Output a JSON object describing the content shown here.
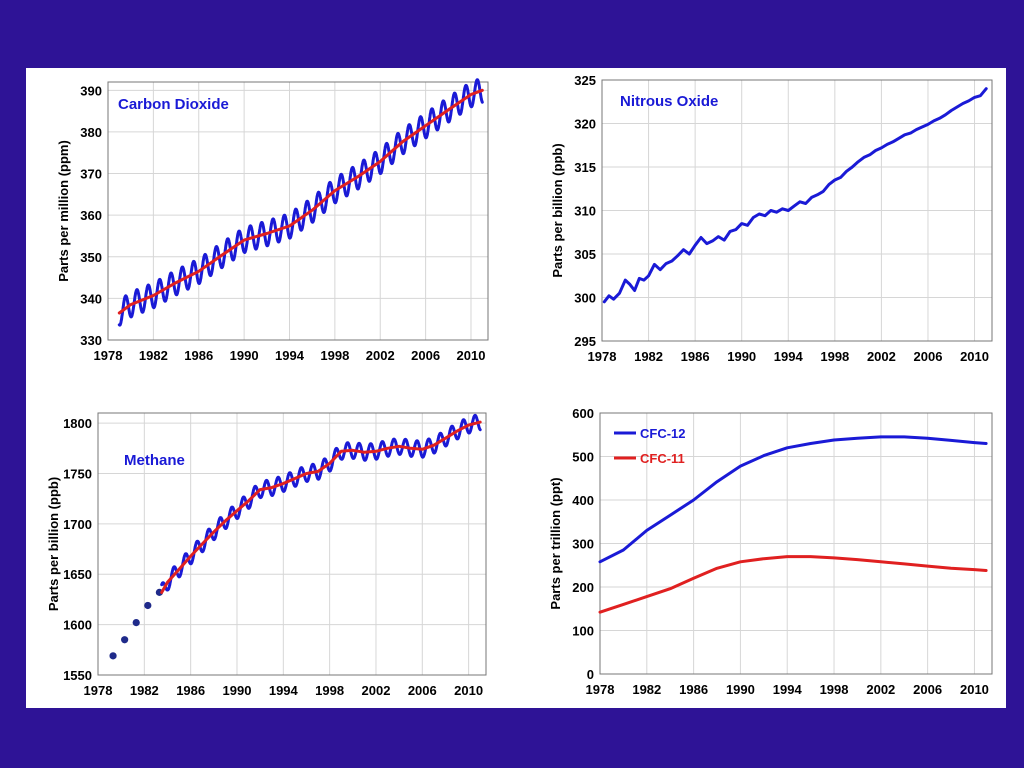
{
  "colors": {
    "background": "#2e1396",
    "blue": "#1a1ad6",
    "red": "#e02020",
    "dots": "#1f2a8a"
  },
  "chart_data": [
    {
      "type": "line",
      "title": "Carbon Dioxide",
      "ylabel": "Parts per million (ppm)",
      "xlim": [
        1978,
        2011.5
      ],
      "ylim": [
        330,
        392
      ],
      "xticks": [
        "1978",
        "1982",
        "1986",
        "1990",
        "1994",
        "1998",
        "2002",
        "2006",
        "2010"
      ],
      "yticks": [
        "330",
        "340",
        "350",
        "360",
        "370",
        "380",
        "390"
      ],
      "series": [
        {
          "color": "blue",
          "style": "seasonal",
          "x": [
            1979,
            1980,
            1982,
            1984,
            1986,
            1988,
            1990,
            1992,
            1994,
            1996,
            1998,
            2000,
            2002,
            2004,
            2006,
            2008,
            2010,
            2011
          ],
          "values": [
            336.5,
            338.5,
            340.7,
            343.8,
            346.5,
            350.3,
            354.0,
            355.6,
            357.4,
            361.2,
            365.9,
            369.2,
            372.9,
            377.7,
            381.5,
            385.3,
            389.0,
            390.0
          ],
          "amplitude": 3
        },
        {
          "color": "red",
          "x": [
            1979,
            1980,
            1982,
            1984,
            1986,
            1988,
            1990,
            1992,
            1994,
            1996,
            1998,
            2000,
            2002,
            2004,
            2006,
            2008,
            2010,
            2011
          ],
          "values": [
            336.5,
            338.5,
            340.7,
            343.8,
            346.5,
            350.3,
            354.0,
            355.6,
            357.4,
            361.2,
            365.9,
            369.2,
            372.9,
            377.7,
            381.5,
            385.3,
            389.0,
            390.0
          ]
        }
      ]
    },
    {
      "type": "line",
      "title": "Nitrous Oxide",
      "ylabel": "Parts per billion (ppb)",
      "xlim": [
        1978,
        2011.5
      ],
      "ylim": [
        295,
        325
      ],
      "xticks": [
        "1978",
        "1982",
        "1986",
        "1990",
        "1994",
        "1998",
        "2002",
        "2006",
        "2010"
      ],
      "yticks": [
        "295",
        "300",
        "305",
        "310",
        "315",
        "320",
        "325"
      ],
      "series": [
        {
          "color": "blue",
          "x": [
            1978.2,
            1978.6,
            1979.0,
            1979.5,
            1980.0,
            1980.4,
            1980.8,
            1981.2,
            1981.6,
            1982.0,
            1982.5,
            1983.0,
            1983.5,
            1984.0,
            1984.5,
            1985.0,
            1985.5,
            1986.0,
            1986.5,
            1987.0,
            1987.5,
            1988.0,
            1988.5,
            1989.0,
            1989.5,
            1990.0,
            1990.5,
            1991.0,
            1991.5,
            1992.0,
            1992.5,
            1993.0,
            1993.5,
            1994.0,
            1994.5,
            1995.0,
            1995.5,
            1996.0,
            1996.5,
            1997.0,
            1997.5,
            1998.0,
            1998.5,
            1999.0,
            1999.5,
            2000.0,
            2000.5,
            2001.0,
            2001.5,
            2002.0,
            2002.5,
            2003.0,
            2003.5,
            2004.0,
            2004.5,
            2005.0,
            2005.5,
            2006.0,
            2006.5,
            2007.0,
            2007.5,
            2008.0,
            2008.5,
            2009.0,
            2009.5,
            2010.0,
            2010.5,
            2011.0
          ],
          "values": [
            299.5,
            300.2,
            299.8,
            300.5,
            302.0,
            301.5,
            300.8,
            302.2,
            302.0,
            302.5,
            303.8,
            303.2,
            303.9,
            304.2,
            304.8,
            305.5,
            305.0,
            306.0,
            306.9,
            306.2,
            306.5,
            307.0,
            306.6,
            307.6,
            307.8,
            308.5,
            308.3,
            309.2,
            309.6,
            309.4,
            310.0,
            309.8,
            310.2,
            310.0,
            310.5,
            311.0,
            310.8,
            311.5,
            311.8,
            312.2,
            313.0,
            313.5,
            313.8,
            314.5,
            315.0,
            315.6,
            316.1,
            316.4,
            316.9,
            317.2,
            317.6,
            317.9,
            318.3,
            318.7,
            318.9,
            319.3,
            319.6,
            319.9,
            320.3,
            320.6,
            321.0,
            321.5,
            321.9,
            322.3,
            322.6,
            323.0,
            323.2,
            324.0
          ]
        }
      ]
    },
    {
      "type": "line",
      "title": "Methane",
      "ylabel": "Parts per billion (ppb)",
      "xlim": [
        1978,
        2011.5
      ],
      "ylim": [
        1550,
        1810
      ],
      "xticks": [
        "1978",
        "1982",
        "1986",
        "1990",
        "1994",
        "1998",
        "2002",
        "2006",
        "2010"
      ],
      "yticks": [
        "1550",
        "1600",
        "1650",
        "1700",
        "1750",
        "1800"
      ],
      "series": [
        {
          "color": "dots",
          "style": "dots",
          "x": [
            1979.3,
            1980.3,
            1981.3,
            1982.3,
            1983.3
          ],
          "values": [
            1569,
            1585,
            1602,
            1619,
            1632
          ]
        },
        {
          "color": "blue",
          "style": "seasonal",
          "x": [
            1983.5,
            1984,
            1985,
            1986,
            1987,
            1988,
            1989,
            1990,
            1991,
            1992,
            1993,
            1994,
            1995,
            1996,
            1997,
            1998,
            1999,
            2000,
            2001,
            2002,
            2003,
            2004,
            2005,
            2006,
            2007,
            2008,
            2009,
            2010,
            2011
          ],
          "values": [
            1632,
            1642,
            1655,
            1668,
            1680,
            1692,
            1703,
            1713,
            1723,
            1734,
            1736,
            1740,
            1745,
            1750,
            1752,
            1760,
            1772,
            1773,
            1771,
            1772,
            1775,
            1777,
            1775,
            1774,
            1778,
            1785,
            1792,
            1798,
            1801
          ],
          "amplitude": 8
        },
        {
          "color": "red",
          "x": [
            1983.5,
            1984,
            1985,
            1986,
            1987,
            1988,
            1989,
            1990,
            1991,
            1992,
            1993,
            1994,
            1995,
            1996,
            1997,
            1998,
            1999,
            2000,
            2001,
            2002,
            2003,
            2004,
            2005,
            2006,
            2007,
            2008,
            2009,
            2010,
            2011
          ],
          "values": [
            1632,
            1642,
            1655,
            1668,
            1680,
            1692,
            1703,
            1713,
            1723,
            1734,
            1736,
            1740,
            1745,
            1750,
            1752,
            1760,
            1772,
            1773,
            1771,
            1772,
            1775,
            1777,
            1775,
            1774,
            1778,
            1785,
            1792,
            1798,
            1801
          ]
        }
      ]
    },
    {
      "type": "line",
      "title": "",
      "ylabel": "Parts per trillion (ppt)",
      "xlim": [
        1978,
        2011.5
      ],
      "ylim": [
        0,
        600
      ],
      "xticks": [
        "1978",
        "1982",
        "1986",
        "1990",
        "1994",
        "1998",
        "2002",
        "2006",
        "2010"
      ],
      "yticks": [
        "0",
        "100",
        "200",
        "300",
        "400",
        "500",
        "600"
      ],
      "legend": [
        "CFC-12",
        "CFC-11"
      ],
      "series": [
        {
          "name": "CFC-12",
          "color": "blue",
          "x": [
            1978,
            1980,
            1982,
            1984,
            1986,
            1988,
            1990,
            1992,
            1994,
            1996,
            1998,
            2000,
            2002,
            2004,
            2006,
            2008,
            2010,
            2011
          ],
          "values": [
            258,
            285,
            330,
            365,
            400,
            442,
            478,
            502,
            520,
            530,
            538,
            542,
            545,
            545,
            542,
            537,
            532,
            530
          ]
        },
        {
          "name": "CFC-11",
          "color": "red",
          "x": [
            1978,
            1980,
            1982,
            1984,
            1986,
            1988,
            1990,
            1992,
            1994,
            1996,
            1998,
            2000,
            2002,
            2004,
            2006,
            2008,
            2010,
            2011
          ],
          "values": [
            142,
            160,
            178,
            196,
            220,
            243,
            258,
            265,
            270,
            270,
            267,
            263,
            258,
            253,
            248,
            243,
            240,
            238
          ]
        }
      ]
    }
  ]
}
